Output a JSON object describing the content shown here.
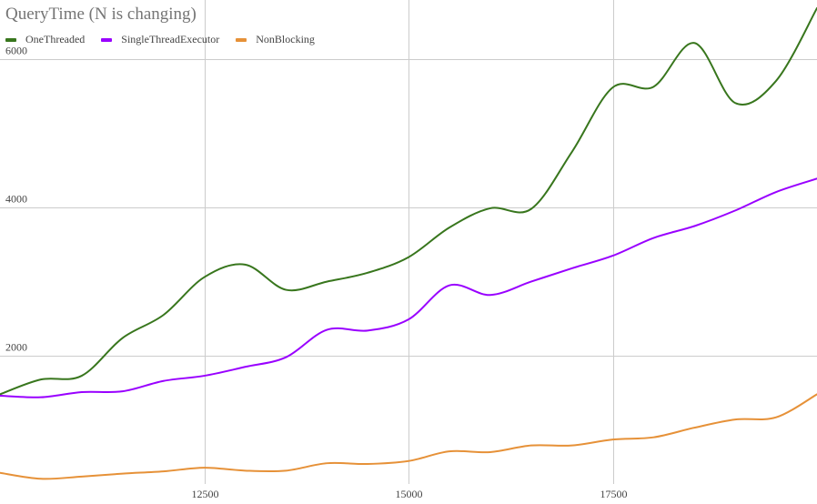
{
  "chart_data": {
    "type": "line",
    "title": "QueryTime (N is changing)",
    "xlabel": "",
    "ylabel": "",
    "xlim": [
      10000,
      20000
    ],
    "ylim": [
      0,
      6800
    ],
    "x_ticks": [
      12500,
      15000,
      17500
    ],
    "y_ticks": [
      2000,
      4000,
      6000
    ],
    "grid": true,
    "legend_position": "top-left",
    "x": [
      10000,
      10500,
      11000,
      11500,
      12000,
      12500,
      13000,
      13500,
      14000,
      14500,
      15000,
      15500,
      16000,
      16500,
      17000,
      17500,
      18000,
      18500,
      19000,
      19500,
      20000
    ],
    "series": [
      {
        "name": "OneThreaded",
        "color": "#38761d",
        "values": [
          1480,
          1680,
          1730,
          2240,
          2550,
          3060,
          3230,
          2890,
          3000,
          3120,
          3330,
          3730,
          3990,
          3980,
          4750,
          5620,
          5630,
          6220,
          5410,
          5710,
          6690
        ]
      },
      {
        "name": "SingleThreadExecutor",
        "color": "#9900ff",
        "values": [
          1460,
          1440,
          1510,
          1520,
          1660,
          1730,
          1850,
          1980,
          2350,
          2340,
          2490,
          2950,
          2820,
          3000,
          3180,
          3350,
          3590,
          3750,
          3960,
          4210,
          4390
        ]
      },
      {
        "name": "NonBlocking",
        "color": "#e69138",
        "values": [
          420,
          340,
          370,
          410,
          440,
          490,
          450,
          450,
          550,
          540,
          580,
          710,
          700,
          790,
          790,
          870,
          900,
          1030,
          1140,
          1170,
          1480
        ]
      }
    ]
  }
}
